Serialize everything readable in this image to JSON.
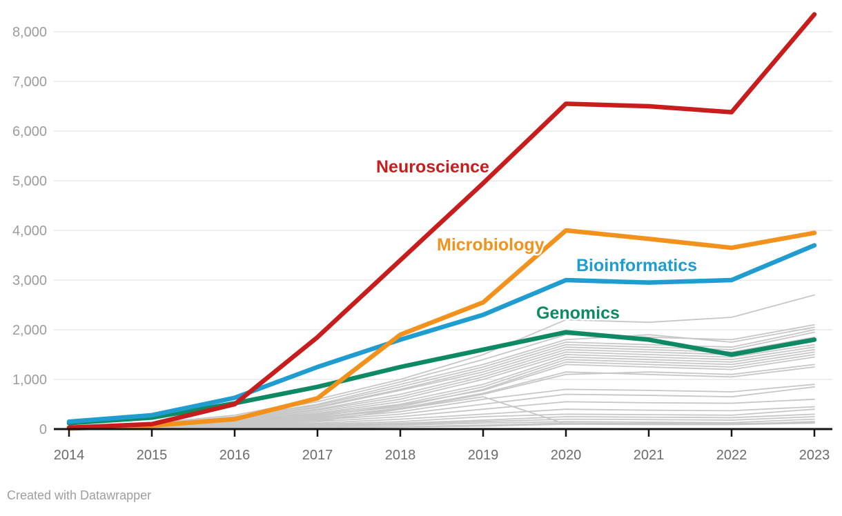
{
  "page": {
    "footer_attribution": "Created with Datawrapper",
    "background_color": "#ffffff"
  },
  "chart_data": {
    "type": "line",
    "x": [
      2014,
      2015,
      2016,
      2017,
      2018,
      2019,
      2020,
      2021,
      2022,
      2023
    ],
    "x_tick_labels": [
      "2014",
      "2015",
      "2016",
      "2017",
      "2018",
      "2019",
      "2020",
      "2021",
      "2022",
      "2023"
    ],
    "y_axis": {
      "min": 0,
      "max": 8000,
      "step": 1000,
      "tick_labels": [
        "0",
        "1,000",
        "2,000",
        "3,000",
        "4,000",
        "5,000",
        "6,000",
        "7,000",
        "8,000"
      ],
      "grid": true
    },
    "legend_position": "direct-labels-on-chart",
    "series": [
      {
        "name": "Neuroscience",
        "color": "#c71e1d",
        "values": [
          30,
          100,
          500,
          1850,
          3400,
          4950,
          6550,
          6500,
          6380,
          8350
        ]
      },
      {
        "name": "Microbiology",
        "color": "#f2911b",
        "values": [
          10,
          70,
          200,
          620,
          1900,
          2550,
          4000,
          3830,
          3650,
          3950
        ]
      },
      {
        "name": "Bioinformatics",
        "color": "#1f9cd0",
        "values": [
          150,
          280,
          630,
          1250,
          1800,
          2300,
          3000,
          2950,
          3000,
          3700
        ]
      },
      {
        "name": "Genomics",
        "color": "#0d8a63",
        "values": [
          120,
          230,
          520,
          850,
          1250,
          1600,
          1950,
          1800,
          1500,
          1800
        ]
      }
    ],
    "background_series": {
      "color": "#c7c7c7",
      "lines": [
        [
          50,
          120,
          280,
          600,
          1000,
          1500,
          2200,
          2150,
          2250,
          2700
        ],
        [
          40,
          100,
          250,
          550,
          950,
          1400,
          1900,
          1850,
          1800,
          2100
        ],
        [
          60,
          110,
          240,
          500,
          900,
          1300,
          1800,
          1900,
          1750,
          2050
        ],
        [
          30,
          90,
          220,
          480,
          850,
          1250,
          1750,
          1700,
          1650,
          2000
        ],
        [
          20,
          80,
          200,
          450,
          800,
          1200,
          1700,
          1650,
          1600,
          1950
        ],
        [
          50,
          100,
          210,
          430,
          780,
          1150,
          1650,
          1600,
          1550,
          1850
        ],
        [
          40,
          85,
          190,
          400,
          700,
          1100,
          1600,
          1550,
          1500,
          1800
        ],
        [
          30,
          70,
          180,
          380,
          650,
          1050,
          1550,
          1500,
          1450,
          1700
        ],
        [
          20,
          60,
          160,
          350,
          600,
          1000,
          1500,
          1450,
          1400,
          1650
        ],
        [
          25,
          65,
          150,
          320,
          550,
          900,
          1450,
          1400,
          1350,
          1600
        ],
        [
          15,
          50,
          140,
          300,
          500,
          850,
          1400,
          1350,
          1300,
          1550
        ],
        [
          10,
          40,
          120,
          280,
          450,
          800,
          1350,
          1300,
          1250,
          1500
        ],
        [
          20,
          55,
          130,
          260,
          480,
          780,
          1300,
          1250,
          1200,
          1450
        ],
        [
          15,
          45,
          110,
          240,
          420,
          720,
          1150,
          1100,
          1050,
          1250
        ],
        [
          10,
          35,
          100,
          220,
          400,
          700,
          1100,
          1150,
          1100,
          1300
        ],
        [
          5,
          30,
          90,
          200,
          350,
          600,
          800,
          780,
          750,
          900
        ],
        [
          10,
          25,
          80,
          180,
          300,
          500,
          700,
          680,
          650,
          850
        ],
        [
          5,
          20,
          70,
          150,
          250,
          400,
          550,
          530,
          520,
          600
        ],
        [
          5,
          20,
          60,
          120,
          200,
          300,
          400,
          380,
          370,
          450
        ],
        [
          5,
          15,
          50,
          100,
          150,
          250,
          300,
          290,
          280,
          400
        ],
        [
          5,
          10,
          40,
          80,
          120,
          180,
          250,
          240,
          230,
          300
        ],
        [
          0,
          10,
          30,
          60,
          100,
          150,
          200,
          190,
          180,
          250
        ],
        [
          0,
          5,
          20,
          50,
          80,
          120,
          150,
          140,
          130,
          200
        ],
        [
          0,
          10,
          50,
          150,
          400,
          650,
          100,
          120,
          110,
          130
        ],
        [
          0,
          5,
          10,
          30,
          50,
          80,
          120,
          110,
          100,
          150
        ],
        [
          0,
          0,
          10,
          20,
          40,
          60,
          100,
          90,
          90,
          120
        ]
      ]
    },
    "title": "",
    "xlabel": "",
    "ylabel": "",
    "ylim": [
      0,
      8000
    ]
  },
  "colors": {
    "gridline": "#e2e2e2",
    "axis": "#151515",
    "x_tick_text": "#6b6b6b",
    "y_tick_text": "#9c9c9c",
    "footer_text": "#9e9e9e"
  }
}
